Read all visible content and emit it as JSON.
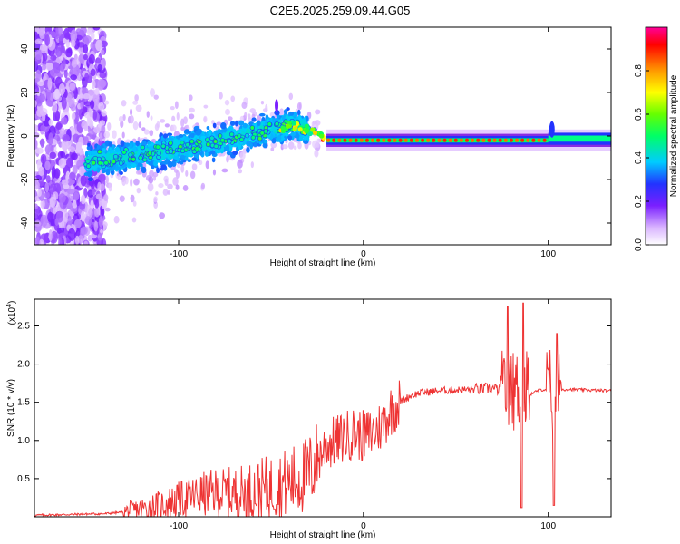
{
  "page": {
    "title": "C2E5.2025.259.09.44.G05"
  },
  "chart_data": [
    {
      "type": "heatmap",
      "title": "C2E5.2025.259.09.44.G05",
      "xlabel": "Height of straight line (km)",
      "ylabel": "Frequency (Hz)",
      "xlim": [
        -178,
        134
      ],
      "ylim": [
        -50,
        50
      ],
      "x_ticks": [
        -100,
        0,
        100
      ],
      "y_ticks": [
        -40,
        -20,
        0,
        20,
        40
      ],
      "colorbar": {
        "label": "Normalized spectral amplitude",
        "range": [
          0.0,
          1.0
        ],
        "ticks": [
          0.0,
          0.2,
          0.4,
          0.6,
          0.8
        ]
      },
      "description_points": [
        {
          "x": -150,
          "y": -12
        },
        {
          "x": -130,
          "y": -10
        },
        {
          "x": -110,
          "y": -7
        },
        {
          "x": -90,
          "y": -4
        },
        {
          "x": -70,
          "y": -1
        },
        {
          "x": -50,
          "y": 3
        },
        {
          "x": -38,
          "y": 5
        },
        {
          "x": -25,
          "y": 1
        },
        {
          "x": -15,
          "y": -2
        },
        {
          "x": 0,
          "y": -2
        },
        {
          "x": 50,
          "y": -2
        },
        {
          "x": 100,
          "y": -2
        },
        {
          "x": 134,
          "y": -1
        }
      ]
    },
    {
      "type": "line",
      "xlabel": "Height of straight line (km)",
      "ylabel": "SNR (10 * v/v)",
      "y_multiplier_label": "(x10",
      "y_multiplier_exp": "4",
      "xlim": [
        -178,
        134
      ],
      "ylim": [
        0.0,
        2.85
      ],
      "x_ticks": [
        -100,
        0,
        100
      ],
      "y_ticks": [
        0.5,
        1.0,
        1.5,
        2.0,
        2.5
      ],
      "line_color": "#ee3333",
      "x": [
        -178,
        -160,
        -140,
        -130,
        -120,
        -110,
        -100,
        -90,
        -80,
        -70,
        -60,
        -50,
        -40,
        -30,
        -25,
        -20,
        -15,
        -10,
        -5,
        0,
        5,
        10,
        15,
        20,
        25,
        30,
        40,
        50,
        60,
        70,
        75,
        80,
        85,
        90,
        95,
        100,
        105,
        110,
        120,
        134
      ],
      "y": [
        0.02,
        0.03,
        0.04,
        0.06,
        0.1,
        0.15,
        0.22,
        0.28,
        0.32,
        0.3,
        0.33,
        0.38,
        0.45,
        0.55,
        0.75,
        0.95,
        0.98,
        1.05,
        1.1,
        1.05,
        1.1,
        1.2,
        1.4,
        1.5,
        1.58,
        1.62,
        1.65,
        1.66,
        1.67,
        1.68,
        1.66,
        1.7,
        1.68,
        1.6,
        1.66,
        1.67,
        1.66,
        1.67,
        1.66,
        1.65
      ]
    }
  ]
}
